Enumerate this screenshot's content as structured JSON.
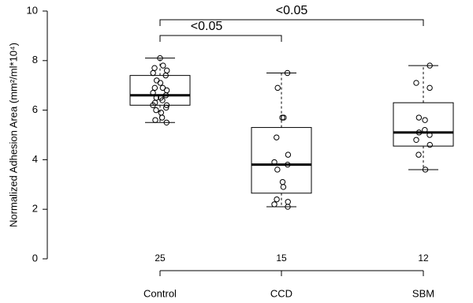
{
  "chart_data": {
    "type": "boxplot",
    "ylabel": "Normalized Adhesion Area (mm²/ml*10⁴)",
    "ylim": [
      0,
      10
    ],
    "yticks": [
      0,
      2,
      4,
      6,
      8,
      10
    ],
    "groups": [
      {
        "name": "Control",
        "n": 25,
        "whisker_low": 5.5,
        "q1": 6.2,
        "median": 6.6,
        "q3": 7.4,
        "whisker_high": 8.1,
        "points": [
          8.1,
          7.8,
          7.7,
          7.6,
          7.5,
          7.4,
          7.2,
          7.1,
          6.9,
          6.9,
          6.8,
          6.7,
          6.6,
          6.5,
          6.5,
          6.4,
          6.3,
          6.2,
          6.2,
          6.1,
          6.0,
          5.9,
          5.7,
          5.6,
          5.5
        ]
      },
      {
        "name": "CCD",
        "n": 15,
        "whisker_low": 2.1,
        "q1": 2.65,
        "median": 3.8,
        "q3": 5.3,
        "whisker_high": 7.5,
        "points": [
          7.5,
          6.9,
          5.7,
          5.7,
          4.9,
          4.2,
          3.9,
          3.8,
          3.6,
          3.1,
          2.9,
          2.4,
          2.3,
          2.2,
          2.1
        ]
      },
      {
        "name": "SBM",
        "n": 12,
        "whisker_low": 3.6,
        "q1": 4.55,
        "median": 5.1,
        "q3": 6.3,
        "whisker_high": 7.8,
        "points": [
          7.8,
          7.1,
          6.9,
          5.7,
          5.6,
          5.2,
          5.1,
          5.0,
          4.8,
          4.6,
          4.2,
          3.6
        ]
      }
    ],
    "annotations": [
      "<0.05",
      "<0.05"
    ]
  }
}
